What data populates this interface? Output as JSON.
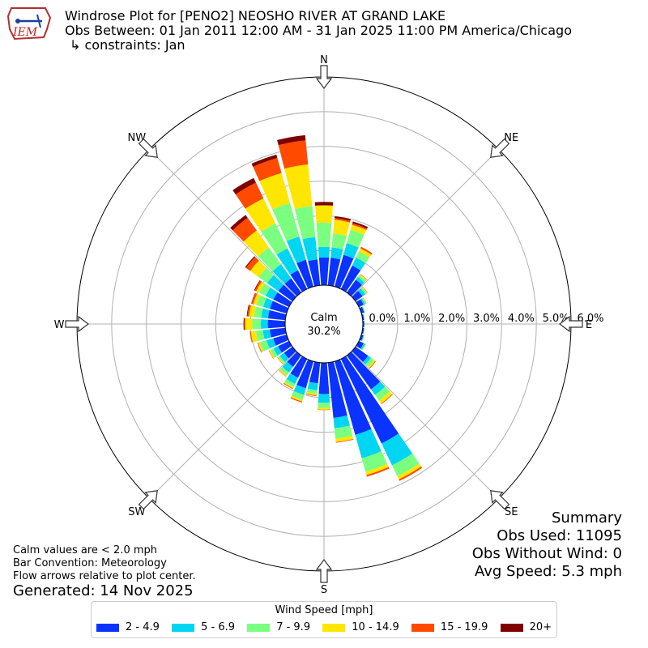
{
  "header": {
    "title_line1": "Windrose Plot for [PENO2] NEOSHO RIVER  AT GRAND LAKE",
    "title_line2": "Obs Between: 01 Jan 2011 12:00 AM - 31 Jan 2025 11:00 PM America/Chicago",
    "title_line3": "↳ constraints: Jan",
    "logo_text": "IEM"
  },
  "summary": {
    "title": "Summary",
    "obs_used": "Obs Used: 11095",
    "obs_without_wind": "Obs Without Wind: 0",
    "avg_speed": "Avg Speed: 5.3 mph"
  },
  "notes": {
    "calm_note": "Calm values are < 2.0 mph",
    "bar_convention": "Bar Convention: Meteorology",
    "flow_arrows": "Flow arrows relative to plot center.",
    "generated": "Generated: 14 Nov 2025"
  },
  "colors": {
    "bins": [
      "#0a33ff",
      "#00d5f2",
      "#7bff80",
      "#ffe600",
      "#ff4a00",
      "#7f0000"
    ]
  },
  "chart_data": {
    "type": "windrose",
    "direction_labels": [
      "N",
      "NE",
      "E",
      "SE",
      "S",
      "SW",
      "W",
      "NW"
    ],
    "radial_tick_labels": [
      "0.0%",
      "1.0%",
      "2.0%",
      "3.0%",
      "4.0%",
      "5.0%",
      "6.0%"
    ],
    "radial_range": [
      0,
      6
    ],
    "calm_label": "Calm",
    "calm_value": "30.2%",
    "legend_title": "Wind Speed [mph]",
    "speed_bins": [
      "2 - 4.9",
      "5 - 6.9",
      "7 - 9.9",
      "10 - 14.9",
      "15 - 19.9",
      "20+"
    ],
    "sectors": [
      {
        "dir": 0,
        "values": [
          0.8,
          1.1,
          1.8,
          2.3,
          2.3,
          2.4
        ]
      },
      {
        "dir": 10,
        "values": [
          0.8,
          1.1,
          1.5,
          1.9,
          1.95,
          2.0
        ]
      },
      {
        "dir": 20,
        "values": [
          0.95,
          1.3,
          1.7,
          1.85,
          1.9,
          1.95
        ]
      },
      {
        "dir": 30,
        "values": [
          0.75,
          1.0,
          1.2,
          1.3,
          1.35,
          1.35
        ]
      },
      {
        "dir": 40,
        "values": [
          0.45,
          0.55,
          0.62,
          0.65,
          0.66,
          0.66
        ]
      },
      {
        "dir": 50,
        "values": [
          0.25,
          0.35,
          0.4,
          0.42,
          0.43,
          0.43
        ]
      },
      {
        "dir": 60,
        "values": [
          0.15,
          0.2,
          0.22,
          0.23,
          0.24,
          0.24
        ]
      },
      {
        "dir": 70,
        "values": [
          0.08,
          0.1,
          0.11,
          0.11,
          0.11,
          0.11
        ]
      },
      {
        "dir": 80,
        "values": [
          0.04,
          0.05,
          0.06,
          0.06,
          0.06,
          0.06
        ]
      },
      {
        "dir": 90,
        "values": [
          0.04,
          0.05,
          0.05,
          0.05,
          0.05,
          0.05
        ]
      },
      {
        "dir": 100,
        "values": [
          0.04,
          0.05,
          0.05,
          0.05,
          0.05,
          0.05
        ]
      },
      {
        "dir": 110,
        "values": [
          0.06,
          0.08,
          0.09,
          0.09,
          0.09,
          0.09
        ]
      },
      {
        "dir": 120,
        "values": [
          0.15,
          0.2,
          0.22,
          0.23,
          0.23,
          0.23
        ]
      },
      {
        "dir": 130,
        "values": [
          0.45,
          0.55,
          0.65,
          0.7,
          0.72,
          0.72
        ]
      },
      {
        "dir": 140,
        "values": [
          1.2,
          1.4,
          1.6,
          1.7,
          1.72,
          1.72
        ]
      },
      {
        "dir": 150,
        "values": [
          2.7,
          3.4,
          3.75,
          3.85,
          3.9,
          3.9
        ]
      },
      {
        "dir": 160,
        "values": [
          2.2,
          2.9,
          3.3,
          3.4,
          3.45,
          3.45
        ]
      },
      {
        "dir": 170,
        "values": [
          1.6,
          1.9,
          2.2,
          2.3,
          2.32,
          2.32
        ]
      },
      {
        "dir": 180,
        "values": [
          0.9,
          1.15,
          1.3,
          1.35,
          1.36,
          1.36
        ]
      },
      {
        "dir": 190,
        "values": [
          0.6,
          0.8,
          0.9,
          0.95,
          0.97,
          0.97
        ]
      },
      {
        "dir": 200,
        "values": [
          0.8,
          1.0,
          1.15,
          1.2,
          1.23,
          1.23
        ]
      },
      {
        "dir": 210,
        "values": [
          0.6,
          0.8,
          0.9,
          0.94,
          0.96,
          0.96
        ]
      },
      {
        "dir": 220,
        "values": [
          0.4,
          0.6,
          0.7,
          0.74,
          0.75,
          0.75
        ]
      },
      {
        "dir": 230,
        "values": [
          0.3,
          0.45,
          0.5,
          0.53,
          0.54,
          0.54
        ]
      },
      {
        "dir": 240,
        "values": [
          0.35,
          0.5,
          0.6,
          0.64,
          0.65,
          0.65
        ]
      },
      {
        "dir": 250,
        "values": [
          0.4,
          0.6,
          0.8,
          0.85,
          0.87,
          0.87
        ]
      },
      {
        "dir": 260,
        "values": [
          0.45,
          0.65,
          0.85,
          1.0,
          1.03,
          1.03
        ]
      },
      {
        "dir": 270,
        "values": [
          0.5,
          0.7,
          0.95,
          1.15,
          1.18,
          1.2
        ]
      },
      {
        "dir": 280,
        "values": [
          0.5,
          0.7,
          0.9,
          1.05,
          1.1,
          1.12
        ]
      },
      {
        "dir": 290,
        "values": [
          0.5,
          0.7,
          0.9,
          1.0,
          1.05,
          1.06
        ]
      },
      {
        "dir": 300,
        "values": [
          0.5,
          0.75,
          0.95,
          1.05,
          1.1,
          1.12
        ]
      },
      {
        "dir": 310,
        "values": [
          0.5,
          0.9,
          1.2,
          1.5,
          1.65,
          1.68
        ]
      },
      {
        "dir": 320,
        "values": [
          0.5,
          1.0,
          1.6,
          2.2,
          2.65,
          2.75
        ]
      },
      {
        "dir": 330,
        "values": [
          0.6,
          1.3,
          2.1,
          2.9,
          3.4,
          3.55
        ]
      },
      {
        "dir": 340,
        "values": [
          0.8,
          1.5,
          2.5,
          3.4,
          3.85,
          3.95
        ]
      },
      {
        "dir": 350,
        "values": [
          0.75,
          1.4,
          2.3,
          3.5,
          4.2,
          4.35
        ]
      }
    ]
  }
}
